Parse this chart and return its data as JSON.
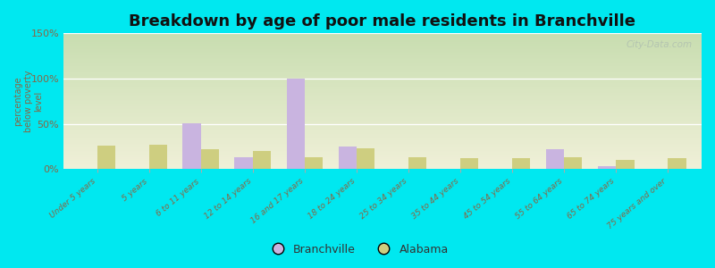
{
  "title": "Breakdown by age of poor male residents in Branchville",
  "ylabel": "percentage\nbelow poverty\nlevel",
  "categories": [
    "Under 5 years",
    "5 years",
    "6 to 11 years",
    "12 to 14 years",
    "16 and 17 years",
    "18 to 24 years",
    "25 to 34 years",
    "35 to 44 years",
    "45 to 54 years",
    "55 to 64 years",
    "65 to 74 years",
    "75 years and over"
  ],
  "branchville": [
    0,
    0,
    51,
    13,
    100,
    25,
    0,
    0,
    0,
    22,
    3,
    0
  ],
  "alabama": [
    26,
    27,
    22,
    20,
    13,
    23,
    13,
    12,
    12,
    13,
    10,
    12
  ],
  "branchville_color": "#c9b4e0",
  "alabama_color": "#cece80",
  "ylim": [
    0,
    150
  ],
  "yticks": [
    0,
    50,
    100,
    150
  ],
  "ytick_labels": [
    "0%",
    "50%",
    "100%",
    "150%"
  ],
  "background_outer": "#00e8f0",
  "bg_top": "#c8ddb0",
  "bg_bottom": "#f0f0d8",
  "title_fontsize": 13,
  "bar_width": 0.35,
  "watermark": "City-Data.com",
  "label_color": "#886644",
  "tick_color": "#886644"
}
